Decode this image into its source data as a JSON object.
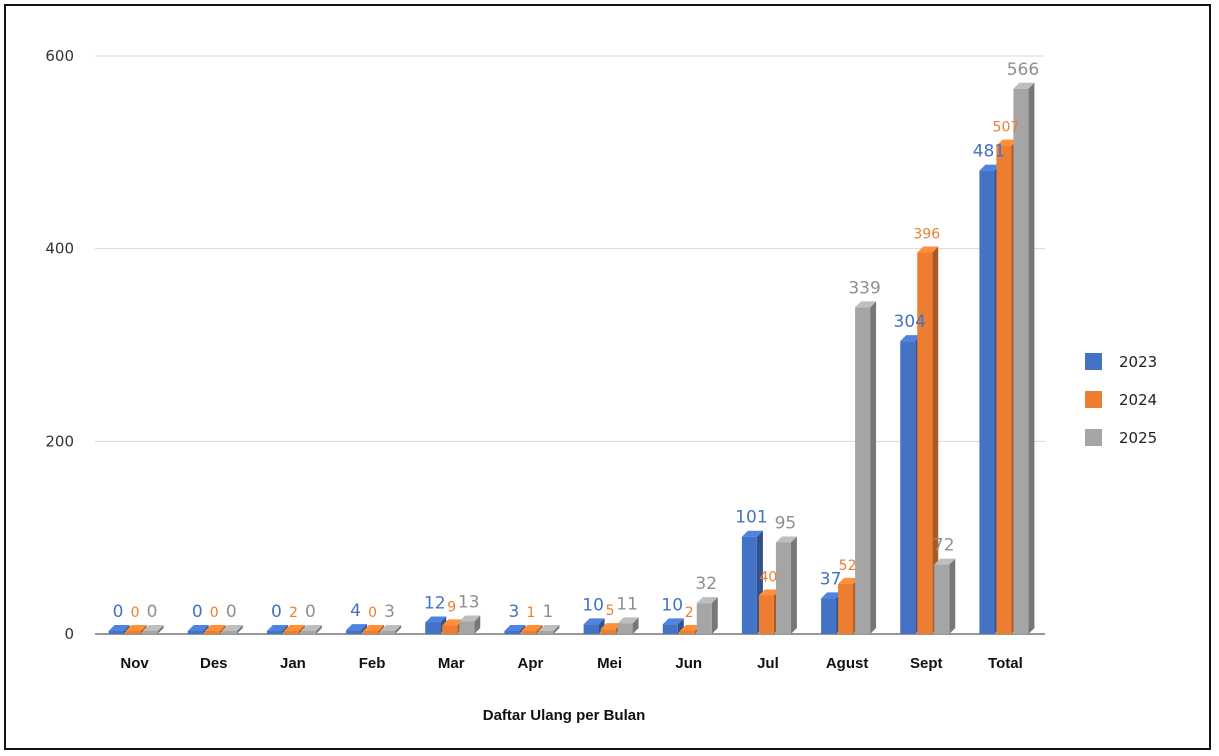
{
  "chart_data": {
    "type": "bar",
    "categories": [
      "Nov",
      "Des",
      "Jan",
      "Feb",
      "Mar",
      "Apr",
      "Mei",
      "Jun",
      "Jul",
      "Agust",
      "Sept",
      "Total"
    ],
    "series": [
      {
        "name": "2023",
        "color": "#4472C4",
        "values": [
          0,
          0,
          0,
          4,
          12,
          3,
          10,
          10,
          101,
          37,
          304,
          481
        ]
      },
      {
        "name": "2024",
        "color": "#ED7D31",
        "values": [
          0,
          0,
          2,
          0,
          9,
          1,
          5,
          2,
          40,
          52,
          396,
          507
        ]
      },
      {
        "name": "2025",
        "color": "#A5A5A5",
        "values": [
          0,
          0,
          0,
          3,
          13,
          1,
          11,
          32,
          95,
          339,
          72,
          566
        ]
      }
    ],
    "data_label_colors": [
      "#4472C4",
      "#ED7D31",
      "#8F8F8F"
    ],
    "title": "",
    "xlabel": "Daftar Ulang per Bulan",
    "ylabel": "",
    "ylim": [
      0,
      600
    ],
    "yticks": [
      0,
      200,
      400,
      600
    ],
    "grid": true,
    "legend": "right",
    "style": "3d-column"
  }
}
